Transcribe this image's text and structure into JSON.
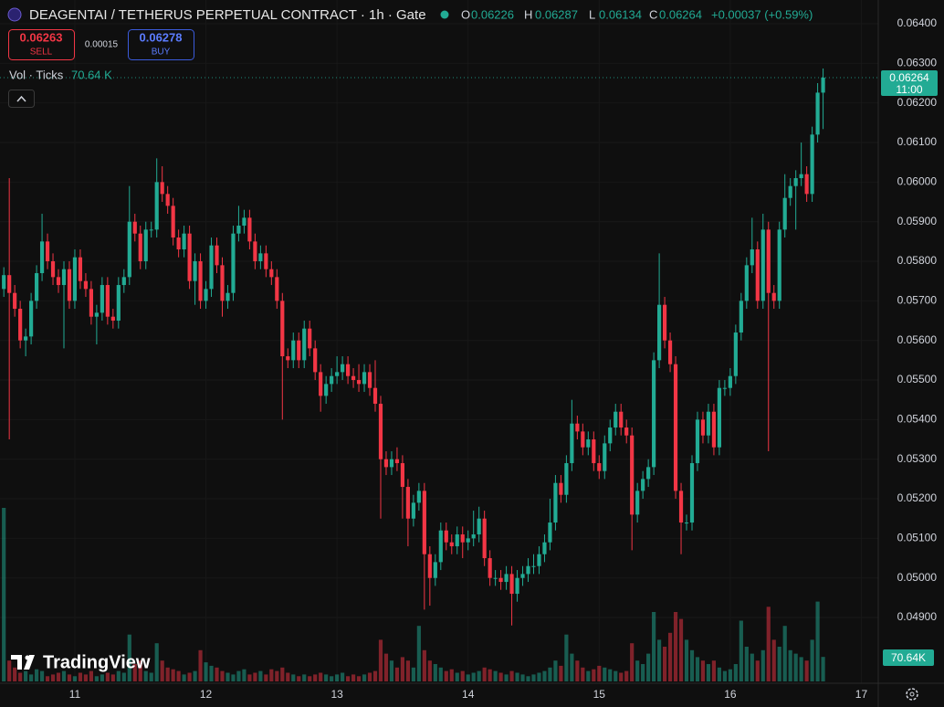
{
  "chart_data": {
    "type": "candlestick",
    "title": "DEAGENTAI / TETHERUS PERPETUAL CONTRACT · 1h · Gate",
    "ohlc_labels": [
      "O",
      "H",
      "L",
      "C"
    ],
    "change": "+0.00037 (+0.59%)",
    "volume_title": "Vol · Ticks",
    "volume_legend": "70.64 K",
    "volume_axis_label": "70.64K",
    "countdown": "11:00",
    "up_color": "#22ab94",
    "down_color": "#f23645",
    "grid": true,
    "xlim": [
      -13.7,
      147.1
    ],
    "xticks": [
      {
        "value": 0,
        "label": "11"
      },
      {
        "value": 24,
        "label": "12"
      },
      {
        "value": 48,
        "label": "13"
      },
      {
        "value": 72,
        "label": "14"
      },
      {
        "value": 96,
        "label": "15"
      },
      {
        "value": 120,
        "label": "16"
      },
      {
        "value": 144,
        "label": "17"
      }
    ],
    "ylim": [
      0.04734,
      0.0646
    ],
    "yticks": [
      {
        "value": 0.049,
        "label": "0.04900"
      },
      {
        "value": 0.05,
        "label": "0.05000"
      },
      {
        "value": 0.051,
        "label": "0.05100"
      },
      {
        "value": 0.052,
        "label": "0.05200"
      },
      {
        "value": 0.053,
        "label": "0.05300"
      },
      {
        "value": 0.054,
        "label": "0.05400"
      },
      {
        "value": 0.055,
        "label": "0.05500"
      },
      {
        "value": 0.056,
        "label": "0.05600"
      },
      {
        "value": 0.057,
        "label": "0.05700"
      },
      {
        "value": 0.058,
        "label": "0.05800"
      },
      {
        "value": 0.059,
        "label": "0.05900"
      },
      {
        "value": 0.06,
        "label": "0.06000"
      },
      {
        "value": 0.061,
        "label": "0.06100"
      },
      {
        "value": 0.062,
        "label": "0.06200"
      },
      {
        "value": 0.063,
        "label": "0.06300"
      },
      {
        "value": 0.064,
        "label": "0.06400"
      }
    ],
    "x": [
      -13,
      -12,
      -11,
      -10,
      -9,
      -8,
      -7,
      -6,
      -5,
      -4,
      -3,
      -2,
      -1,
      0,
      1,
      2,
      3,
      4,
      5,
      6,
      7,
      8,
      9,
      10,
      11,
      12,
      13,
      14,
      15,
      16,
      17,
      18,
      19,
      20,
      21,
      22,
      23,
      24,
      25,
      26,
      27,
      28,
      29,
      30,
      31,
      32,
      33,
      34,
      35,
      36,
      37,
      38,
      39,
      40,
      41,
      42,
      43,
      44,
      45,
      46,
      47,
      48,
      49,
      50,
      51,
      52,
      53,
      54,
      55,
      56,
      57,
      58,
      59,
      60,
      61,
      62,
      63,
      64,
      65,
      66,
      67,
      68,
      69,
      70,
      71,
      72,
      73,
      74,
      75,
      76,
      77,
      78,
      79,
      80,
      81,
      82,
      83,
      84,
      85,
      86,
      87,
      88,
      89,
      90,
      91,
      92,
      93,
      94,
      95,
      96,
      97,
      98,
      99,
      100,
      101,
      102,
      103,
      104,
      105,
      106,
      107,
      108,
      109,
      110,
      111,
      112,
      113,
      114,
      115,
      116,
      117,
      118,
      119,
      120,
      121,
      122,
      123,
      124,
      125,
      126,
      127,
      128,
      129,
      130,
      131,
      132,
      133,
      134,
      135,
      136,
      137
    ],
    "open": [
      0.0573,
      0.05765,
      0.0572,
      0.0568,
      0.056,
      0.0561,
      0.057,
      0.0577,
      0.0585,
      0.058,
      0.0576,
      0.0574,
      0.0578,
      0.057,
      0.0581,
      0.0575,
      0.0573,
      0.0566,
      0.0567,
      0.0574,
      0.0566,
      0.0565,
      0.0574,
      0.0576,
      0.059,
      0.0587,
      0.058,
      0.0588,
      0.0588,
      0.06,
      0.0597,
      0.0594,
      0.0586,
      0.0583,
      0.0587,
      0.0575,
      0.058,
      0.057,
      0.0573,
      0.0584,
      0.0579,
      0.057,
      0.0572,
      0.0587,
      0.0589,
      0.0591,
      0.0585,
      0.058,
      0.0582,
      0.0578,
      0.0576,
      0.057,
      0.0556,
      0.0555,
      0.056,
      0.0555,
      0.0563,
      0.0558,
      0.0552,
      0.0546,
      0.0549,
      0.0551,
      0.0552,
      0.0554,
      0.0551,
      0.055,
      0.0549,
      0.0552,
      0.0548,
      0.0544,
      0.053,
      0.0528,
      0.053,
      0.0529,
      0.0523,
      0.0515,
      0.0519,
      0.0522,
      0.0506,
      0.05,
      0.0504,
      0.0512,
      0.0509,
      0.0508,
      0.0511,
      0.0509,
      0.051,
      0.0511,
      0.0515,
      0.0505,
      0.05,
      0.05,
      0.0499,
      0.0501,
      0.0496,
      0.05,
      0.0501,
      0.0503,
      0.0503,
      0.0506,
      0.0509,
      0.0514,
      0.0524,
      0.0521,
      0.0529,
      0.0539,
      0.0537,
      0.0533,
      0.0535,
      0.0529,
      0.0527,
      0.0534,
      0.0538,
      0.0542,
      0.0538,
      0.0536,
      0.0516,
      0.0522,
      0.0525,
      0.0528,
      0.0555,
      0.0569,
      0.056,
      0.0554,
      0.0522,
      0.0514,
      0.0514,
      0.0529,
      0.054,
      0.0536,
      0.0542,
      0.0533,
      0.0548,
      0.0548,
      0.0551,
      0.0562,
      0.057,
      0.0579,
      0.0583,
      0.057,
      0.0588,
      0.0572,
      0.057,
      0.0588,
      0.0596,
      0.0599,
      0.0601,
      0.0602,
      0.0597,
      0.0612,
      0.06226
    ],
    "high": [
      0.05785,
      0.0601,
      0.0574,
      0.057,
      0.0563,
      0.0572,
      0.0579,
      0.0592,
      0.0587,
      0.0582,
      0.0578,
      0.058,
      0.058,
      0.0583,
      0.0583,
      0.0577,
      0.0575,
      0.0569,
      0.0576,
      0.0576,
      0.0568,
      0.0576,
      0.0578,
      0.0599,
      0.0592,
      0.0589,
      0.059,
      0.059,
      0.0606,
      0.0604,
      0.0599,
      0.0596,
      0.0588,
      0.0589,
      0.0589,
      0.0582,
      0.0582,
      0.0575,
      0.0586,
      0.0586,
      0.0581,
      0.0574,
      0.0589,
      0.0594,
      0.0593,
      0.0593,
      0.0587,
      0.0584,
      0.0584,
      0.058,
      0.0578,
      0.0572,
      0.0558,
      0.0562,
      0.0562,
      0.0565,
      0.0565,
      0.056,
      0.0554,
      0.0551,
      0.0553,
      0.0556,
      0.0556,
      0.0556,
      0.0553,
      0.0554,
      0.0554,
      0.0554,
      0.0555,
      0.0546,
      0.0532,
      0.0532,
      0.0533,
      0.0531,
      0.0525,
      0.0521,
      0.0524,
      0.0524,
      0.0508,
      0.0506,
      0.0514,
      0.0514,
      0.0511,
      0.0513,
      0.0513,
      0.0512,
      0.0517,
      0.0518,
      0.0517,
      0.0507,
      0.0502,
      0.0502,
      0.0503,
      0.0503,
      0.0502,
      0.0503,
      0.0505,
      0.0506,
      0.0508,
      0.0511,
      0.052,
      0.0526,
      0.0526,
      0.0531,
      0.0545,
      0.0541,
      0.0539,
      0.0537,
      0.0537,
      0.0531,
      0.0536,
      0.054,
      0.0544,
      0.0544,
      0.054,
      0.0538,
      0.0524,
      0.0527,
      0.053,
      0.0557,
      0.0582,
      0.0571,
      0.0562,
      0.0556,
      0.0524,
      0.0516,
      0.0531,
      0.0542,
      0.0542,
      0.0544,
      0.0544,
      0.055,
      0.055,
      0.0553,
      0.0564,
      0.0572,
      0.0581,
      0.0591,
      0.0585,
      0.0592,
      0.059,
      0.0574,
      0.059,
      0.0602,
      0.0601,
      0.0603,
      0.061,
      0.0604,
      0.0614,
      0.0625,
      0.06287
    ],
    "low": [
      0.0571,
      0.0535,
      0.0566,
      0.0558,
      0.0556,
      0.0559,
      0.0568,
      0.0575,
      0.0578,
      0.0574,
      0.0572,
      0.0558,
      0.0568,
      0.0568,
      0.0573,
      0.0571,
      0.0564,
      0.0559,
      0.0565,
      0.0564,
      0.0563,
      0.0563,
      0.0572,
      0.0574,
      0.0585,
      0.0578,
      0.0578,
      0.0586,
      0.0586,
      0.0595,
      0.0592,
      0.0584,
      0.0581,
      0.0581,
      0.0573,
      0.0569,
      0.0568,
      0.0568,
      0.0571,
      0.0577,
      0.0566,
      0.0568,
      0.057,
      0.0585,
      0.0587,
      0.0583,
      0.0578,
      0.0578,
      0.0576,
      0.0574,
      0.0568,
      0.054,
      0.0553,
      0.0553,
      0.0553,
      0.0553,
      0.0556,
      0.055,
      0.0542,
      0.0544,
      0.0547,
      0.0549,
      0.055,
      0.0549,
      0.0548,
      0.0547,
      0.0547,
      0.0546,
      0.0542,
      0.0515,
      0.0526,
      0.0526,
      0.0527,
      0.0515,
      0.0508,
      0.0513,
      0.0517,
      0.0492,
      0.0493,
      0.0498,
      0.0502,
      0.0507,
      0.0506,
      0.0506,
      0.0505,
      0.0507,
      0.0508,
      0.0509,
      0.0503,
      0.0498,
      0.0498,
      0.0497,
      0.0497,
      0.0488,
      0.0494,
      0.0498,
      0.0499,
      0.0501,
      0.0501,
      0.0504,
      0.0507,
      0.0512,
      0.0519,
      0.0519,
      0.0527,
      0.0535,
      0.0531,
      0.0531,
      0.0527,
      0.0525,
      0.0525,
      0.0532,
      0.0536,
      0.0536,
      0.0534,
      0.0507,
      0.0514,
      0.052,
      0.0523,
      0.0526,
      0.0553,
      0.0558,
      0.0552,
      0.052,
      0.0506,
      0.0512,
      0.0512,
      0.0527,
      0.0534,
      0.0534,
      0.0531,
      0.0531,
      0.0546,
      0.0546,
      0.0549,
      0.056,
      0.0568,
      0.0577,
      0.0568,
      0.0568,
      0.0532,
      0.0568,
      0.0568,
      0.0586,
      0.0594,
      0.0588,
      0.0599,
      0.0595,
      0.0595,
      0.061,
      0.06134
    ],
    "close": [
      0.05765,
      0.0572,
      0.0568,
      0.056,
      0.0561,
      0.057,
      0.0577,
      0.0585,
      0.058,
      0.0576,
      0.0574,
      0.0578,
      0.057,
      0.0581,
      0.0575,
      0.0573,
      0.0566,
      0.0567,
      0.0574,
      0.0566,
      0.0565,
      0.0574,
      0.0576,
      0.059,
      0.0587,
      0.058,
      0.0588,
      0.0588,
      0.06,
      0.0597,
      0.0594,
      0.0586,
      0.0583,
      0.0587,
      0.0575,
      0.058,
      0.057,
      0.0573,
      0.0584,
      0.0579,
      0.057,
      0.0572,
      0.0587,
      0.0589,
      0.0591,
      0.0585,
      0.058,
      0.0582,
      0.0578,
      0.0576,
      0.057,
      0.0556,
      0.0555,
      0.056,
      0.0555,
      0.0563,
      0.0558,
      0.0552,
      0.0546,
      0.0549,
      0.0551,
      0.0552,
      0.0554,
      0.0551,
      0.055,
      0.0549,
      0.0552,
      0.0548,
      0.0544,
      0.053,
      0.0528,
      0.053,
      0.0529,
      0.0523,
      0.0515,
      0.0519,
      0.0522,
      0.0506,
      0.05,
      0.0504,
      0.0512,
      0.0509,
      0.0508,
      0.0511,
      0.0509,
      0.051,
      0.0511,
      0.0515,
      0.0505,
      0.05,
      0.05,
      0.0499,
      0.0501,
      0.0496,
      0.05,
      0.0501,
      0.0503,
      0.0503,
      0.0506,
      0.0509,
      0.0514,
      0.0524,
      0.0521,
      0.0529,
      0.0539,
      0.0537,
      0.0533,
      0.0535,
      0.0529,
      0.0527,
      0.0534,
      0.0538,
      0.0542,
      0.0538,
      0.0536,
      0.0516,
      0.0522,
      0.0525,
      0.0528,
      0.0555,
      0.0569,
      0.056,
      0.0554,
      0.0522,
      0.0514,
      0.0514,
      0.0529,
      0.054,
      0.0536,
      0.0542,
      0.0533,
      0.0548,
      0.0548,
      0.0551,
      0.0562,
      0.057,
      0.0579,
      0.0583,
      0.057,
      0.0588,
      0.0572,
      0.057,
      0.0588,
      0.0596,
      0.0599,
      0.0601,
      0.0602,
      0.0597,
      0.0612,
      0.06226,
      0.06264
    ],
    "volume": [
      500,
      60,
      40,
      25,
      30,
      20,
      35,
      30,
      15,
      20,
      25,
      30,
      20,
      15,
      25,
      20,
      30,
      15,
      20,
      25,
      20,
      30,
      25,
      135,
      50,
      60,
      30,
      25,
      110,
      60,
      40,
      35,
      30,
      20,
      25,
      30,
      90,
      55,
      45,
      40,
      30,
      25,
      20,
      30,
      35,
      20,
      25,
      30,
      20,
      35,
      30,
      40,
      25,
      20,
      15,
      20,
      15,
      20,
      25,
      20,
      15,
      20,
      25,
      15,
      20,
      15,
      20,
      25,
      30,
      120,
      80,
      60,
      40,
      70,
      60,
      40,
      160,
      90,
      60,
      50,
      40,
      30,
      35,
      25,
      30,
      20,
      25,
      30,
      40,
      35,
      30,
      25,
      20,
      30,
      25,
      20,
      15,
      20,
      25,
      30,
      40,
      60,
      45,
      135,
      80,
      60,
      40,
      30,
      35,
      45,
      40,
      35,
      30,
      25,
      30,
      110,
      60,
      50,
      80,
      200,
      120,
      100,
      140,
      200,
      180,
      120,
      90,
      70,
      60,
      50,
      60,
      40,
      30,
      35,
      50,
      175,
      100,
      80,
      60,
      90,
      215,
      120,
      100,
      160,
      90,
      80,
      70,
      60,
      120,
      230,
      70.64
    ]
  },
  "order_panel": {
    "sell_price": "0.06263",
    "sell_label": "SELL",
    "spread": "0.00015",
    "buy_price": "0.06278",
    "buy_label": "BUY"
  },
  "branding": "TradingView"
}
